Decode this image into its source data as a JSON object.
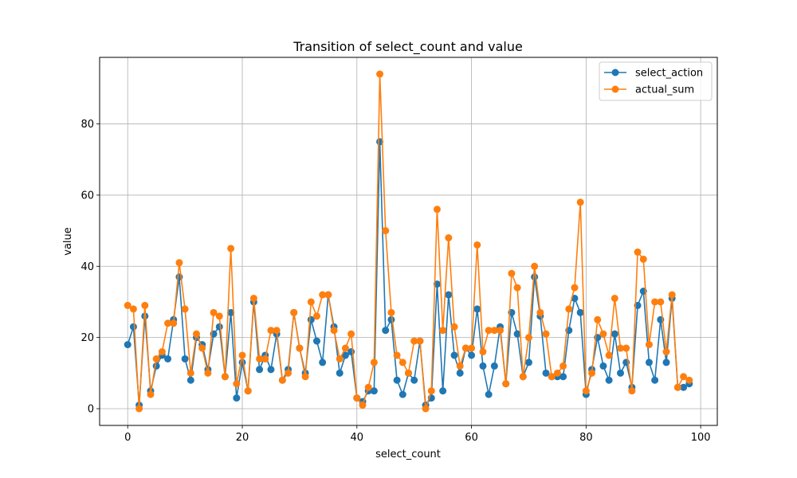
{
  "chart_data": {
    "type": "line",
    "title": "Transition of select_count and value",
    "xlabel": "select_count",
    "ylabel": "value",
    "xlim": [
      -4.9,
      102.9
    ],
    "ylim": [
      -4.7,
      98.7
    ],
    "xticks": [
      0,
      20,
      40,
      60,
      80,
      100
    ],
    "yticks": [
      0,
      20,
      40,
      60,
      80
    ],
    "xtick_labels": [
      "0",
      "20",
      "40",
      "60",
      "80",
      "100"
    ],
    "ytick_labels": [
      "0",
      "20",
      "40",
      "60",
      "80"
    ],
    "grid": true,
    "legend_position": "top-right",
    "marker": "circle",
    "x": [
      0,
      1,
      2,
      3,
      4,
      5,
      6,
      7,
      8,
      9,
      10,
      11,
      12,
      13,
      14,
      15,
      16,
      17,
      18,
      19,
      20,
      21,
      22,
      23,
      24,
      25,
      26,
      27,
      28,
      29,
      30,
      31,
      32,
      33,
      34,
      35,
      36,
      37,
      38,
      39,
      40,
      41,
      42,
      43,
      44,
      45,
      46,
      47,
      48,
      49,
      50,
      51,
      52,
      53,
      54,
      55,
      56,
      57,
      58,
      59,
      60,
      61,
      62,
      63,
      64,
      65,
      66,
      67,
      68,
      69,
      70,
      71,
      72,
      73,
      74,
      75,
      76,
      77,
      78,
      79,
      80,
      81,
      82,
      83,
      84,
      85,
      86,
      87,
      88,
      89,
      90,
      91,
      92,
      93,
      94,
      95,
      96,
      97,
      98
    ],
    "series": [
      {
        "name": "select_action",
        "color": "#1f77b4",
        "values": [
          18,
          23,
          1,
          26,
          5,
          12,
          15,
          14,
          25,
          37,
          14,
          8,
          20,
          18,
          11,
          21,
          23,
          9,
          27,
          3,
          13,
          5,
          30,
          11,
          15,
          11,
          21,
          8,
          11,
          27,
          17,
          10,
          25,
          19,
          13,
          32,
          23,
          10,
          15,
          16,
          3,
          2,
          5,
          5,
          75,
          22,
          25,
          8,
          4,
          10,
          8,
          19,
          1,
          3,
          35,
          5,
          32,
          15,
          10,
          17,
          15,
          28,
          12,
          4,
          12,
          23,
          7,
          27,
          21,
          9,
          13,
          37,
          26,
          10,
          9,
          9,
          9,
          22,
          31,
          27,
          4,
          11,
          20,
          12,
          8,
          21,
          10,
          13,
          6,
          29,
          33,
          13,
          8,
          25,
          13,
          31,
          6,
          6,
          7
        ]
      },
      {
        "name": "actual_sum",
        "color": "#ff7f0e",
        "values": [
          29,
          28,
          0,
          29,
          4,
          14,
          16,
          24,
          24,
          41,
          28,
          10,
          21,
          17,
          10,
          27,
          26,
          9,
          45,
          7,
          15,
          5,
          31,
          14,
          14,
          22,
          22,
          8,
          10,
          27,
          17,
          9,
          30,
          26,
          32,
          32,
          22,
          14,
          17,
          21,
          3,
          1,
          6,
          13,
          94,
          50,
          27,
          15,
          13,
          10,
          19,
          19,
          0,
          5,
          56,
          22,
          48,
          23,
          12,
          17,
          17,
          46,
          16,
          22,
          22,
          22,
          7,
          38,
          34,
          9,
          20,
          40,
          27,
          21,
          9,
          10,
          12,
          28,
          34,
          58,
          5,
          10,
          25,
          21,
          15,
          31,
          17,
          17,
          5,
          44,
          42,
          18,
          30,
          30,
          16,
          32,
          6,
          9,
          8
        ]
      }
    ]
  }
}
